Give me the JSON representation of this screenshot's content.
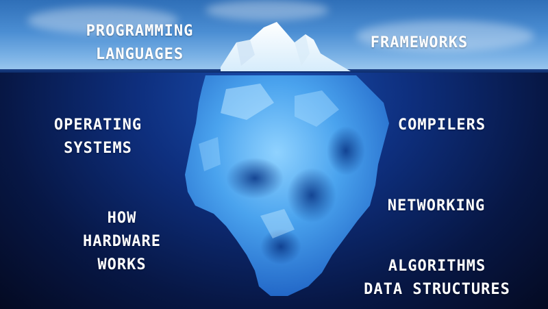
{
  "labels": {
    "programming": [
      "PROGRAMMING",
      "LANGUAGES"
    ],
    "frameworks": [
      "FRAMEWORKS"
    ],
    "operating_systems": [
      "OPERATING",
      "SYSTEMS"
    ],
    "compilers": [
      "COMPILERS"
    ],
    "hardware": [
      "HOW",
      "HARDWARE",
      "WORKS"
    ],
    "networking": [
      "NETWORKING"
    ],
    "algorithms": [
      "ALGORITHMS",
      "DATA STRUCTURES"
    ]
  },
  "colors": {
    "sky_top": "#2f6fb8",
    "sky_bottom": "#9cc7ee",
    "water_deep": "#040a22",
    "ice_light": "#bfe6ff",
    "ice_deep": "#2f7fd8",
    "text": "#ffffff"
  }
}
